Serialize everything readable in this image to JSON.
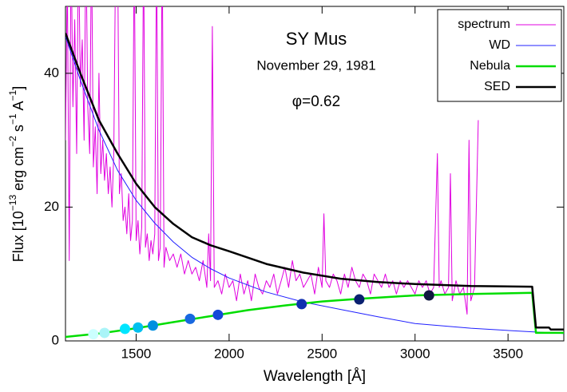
{
  "chart_data": {
    "type": "line",
    "title": "SY Mus",
    "subtitle": "November 29, 1981",
    "annotation": "φ=0.62",
    "xlabel": "Wavelength [Å]",
    "ylabel": [
      "Flux [10",
      "−13",
      " erg cm",
      "−2",
      " s",
      "−1",
      " A",
      "−1",
      "]"
    ],
    "xlim": [
      1120,
      3800
    ],
    "ylim": [
      0,
      50
    ],
    "xticks": [
      1500,
      2000,
      2500,
      3000,
      3500
    ],
    "yticks": [
      0,
      20,
      40
    ],
    "legend": "upper right",
    "series": [
      {
        "name": "spectrum",
        "color": "#e000e0",
        "linewidth": 1,
        "x": [
          1120,
          1130,
          1140,
          1150,
          1160,
          1170,
          1180,
          1190,
          1200,
          1210,
          1220,
          1230,
          1240,
          1250,
          1260,
          1270,
          1280,
          1290,
          1300,
          1310,
          1320,
          1330,
          1340,
          1350,
          1360,
          1370,
          1380,
          1390,
          1400,
          1410,
          1420,
          1430,
          1440,
          1450,
          1460,
          1470,
          1480,
          1490,
          1500,
          1510,
          1520,
          1530,
          1540,
          1550,
          1560,
          1570,
          1580,
          1590,
          1600,
          1610,
          1620,
          1630,
          1640,
          1650,
          1660,
          1680,
          1700,
          1720,
          1740,
          1760,
          1780,
          1800,
          1820,
          1840,
          1860,
          1880,
          1890,
          1900,
          1910,
          1920,
          1940,
          1960,
          1980,
          2000,
          2020,
          2040,
          2060,
          2080,
          2100,
          2120,
          2140,
          2160,
          2180,
          2200,
          2220,
          2240,
          2260,
          2280,
          2300,
          2320,
          2340,
          2360,
          2380,
          2400,
          2420,
          2440,
          2460,
          2480,
          2500,
          2510,
          2520,
          2540,
          2560,
          2580,
          2600,
          2620,
          2640,
          2660,
          2680,
          2700,
          2720,
          2740,
          2760,
          2780,
          2800,
          2820,
          2840,
          2860,
          2880,
          2900,
          2920,
          2940,
          2960,
          2980,
          3000,
          3020,
          3040,
          3060,
          3080,
          3100,
          3120,
          3130,
          3140,
          3160,
          3180,
          3190,
          3200,
          3220,
          3240,
          3260,
          3280,
          3290,
          3300,
          3320,
          3340
        ],
        "values": [
          30,
          55,
          12,
          60,
          35,
          48,
          28,
          60,
          38,
          45,
          30,
          60,
          35,
          28,
          60,
          26,
          32,
          22,
          40,
          25,
          30,
          24,
          28,
          22,
          26,
          20,
          28,
          60,
          60,
          22,
          25,
          18,
          20,
          16,
          22,
          15,
          18,
          60,
          15,
          18,
          13,
          17,
          60,
          14,
          16,
          12,
          15,
          13,
          16,
          60,
          12,
          14,
          60,
          11,
          14,
          12,
          13,
          11,
          13,
          10,
          12,
          10,
          11,
          9,
          12,
          8,
          16,
          9,
          47,
          8,
          9,
          7,
          10,
          8,
          9,
          6,
          10,
          7,
          9,
          6,
          10,
          8,
          7,
          9,
          8,
          10,
          7,
          9,
          11,
          8,
          12,
          9,
          10,
          8,
          9,
          10,
          7,
          11,
          8,
          19,
          9,
          8,
          10,
          9,
          7,
          10,
          8,
          11,
          9,
          8,
          10,
          9,
          7,
          10,
          9,
          8,
          10,
          8,
          9,
          7,
          9,
          8,
          9,
          8,
          7,
          9,
          8,
          9,
          7,
          8,
          28,
          8,
          9,
          7,
          8,
          25,
          6,
          9,
          7,
          8,
          4,
          30,
          6,
          8,
          33
        ]
      },
      {
        "name": "WD",
        "color": "#2020ff",
        "linewidth": 1,
        "x": [
          1120,
          1200,
          1300,
          1400,
          1500,
          1600,
          1700,
          1800,
          1900,
          2000,
          2200,
          2400,
          2600,
          2800,
          3000,
          3300,
          3600,
          3800
        ],
        "values": [
          45.5,
          39,
          31.5,
          25.5,
          21,
          17.6,
          14.8,
          12.5,
          10.8,
          9.4,
          7.3,
          5.8,
          4.7,
          3.6,
          2.6,
          1.9,
          1.4,
          1.1
        ]
      },
      {
        "name": "Nebula",
        "color": "#00dd00",
        "linewidth": 2.5,
        "x": [
          1120,
          1300,
          1500,
          1700,
          1900,
          2100,
          2300,
          2500,
          2700,
          3000,
          3300,
          3630,
          3650,
          3800
        ],
        "values": [
          0.6,
          1.1,
          1.9,
          2.8,
          3.7,
          4.6,
          5.3,
          5.9,
          6.3,
          6.8,
          7.0,
          7.2,
          1.2,
          1.2
        ]
      },
      {
        "name": "SED",
        "color": "#000000",
        "linewidth": 2.5,
        "x": [
          1120,
          1200,
          1300,
          1400,
          1500,
          1600,
          1700,
          1800,
          1900,
          2000,
          2200,
          2400,
          2600,
          2800,
          3000,
          3300,
          3630,
          3650,
          3720,
          3730,
          3800
        ],
        "values": [
          46,
          40,
          33,
          28,
          23.5,
          20,
          17.5,
          15.5,
          14.3,
          13.4,
          11.5,
          10.2,
          9.3,
          8.8,
          8.5,
          8.2,
          8.1,
          2,
          2,
          1.7,
          1.7
        ]
      }
    ],
    "points": {
      "x": [
        1270,
        1330,
        1440,
        1510,
        1590,
        1790,
        1940,
        2390,
        2700,
        3075
      ],
      "values": [
        1.0,
        1.2,
        1.8,
        2.0,
        2.3,
        3.3,
        3.9,
        5.5,
        6.2,
        6.8
      ],
      "colors": [
        "#ccffff",
        "#aaf4f8",
        "#00e5ff",
        "#00c0ee",
        "#0090e0",
        "#1868e0",
        "#1448d8",
        "#1030b0",
        "#0a2070",
        "#101840"
      ]
    }
  }
}
